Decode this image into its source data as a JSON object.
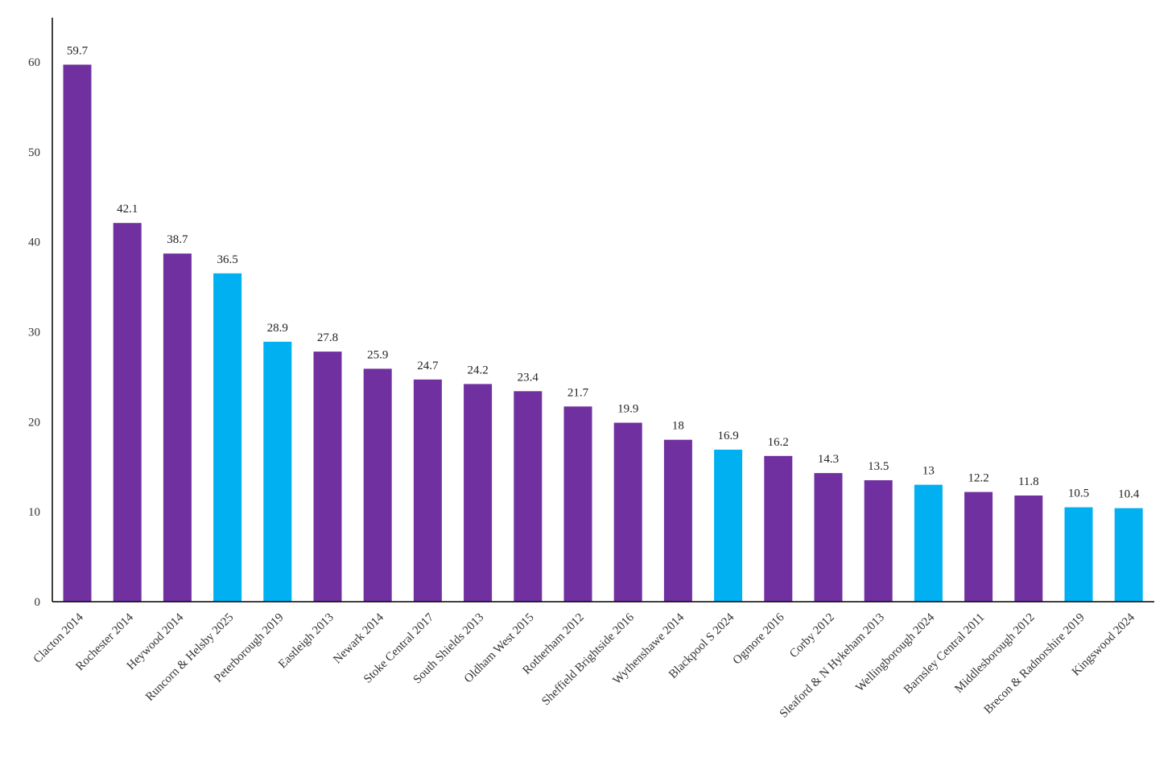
{
  "chart_data": {
    "type": "bar",
    "title": "",
    "xlabel": "",
    "ylabel": "",
    "ylim": [
      0,
      65
    ],
    "yticks": [
      0,
      10,
      20,
      30,
      40,
      50,
      60
    ],
    "grid": false,
    "legend": "none",
    "colors": {
      "purple": "#7030A0",
      "blue": "#00B0F0"
    },
    "categories": [
      "Clacton 2014",
      "Rochester 2014",
      "Heywood 2014",
      "Runcorn & Helsby 2025",
      "Peterborough 2019",
      "Eastleigh 2013",
      "Newark 2014",
      "Stoke Central 2017",
      "South Shields 2013",
      "Oldham West 2015",
      "Rotherham 2012",
      "Sheffield Brightside 2016",
      "Wythenshawe 2014",
      "Blackpool S 2024",
      "Ogmore 2016",
      "Corby 2012",
      "Sleaford & N Hykeham 2013",
      "Wellingborough 2024",
      "Barnsley Central 2011",
      "Middlesborough 2012",
      "Brecon & Radnorshire 2019",
      "Kingswood 2024"
    ],
    "values": [
      59.7,
      42.1,
      38.7,
      36.5,
      28.9,
      27.8,
      25.9,
      24.7,
      24.2,
      23.4,
      21.7,
      19.9,
      18,
      16.9,
      16.2,
      14.3,
      13.5,
      13,
      12.2,
      11.8,
      10.5,
      10.4
    ],
    "value_labels": [
      "59.7",
      "42.1",
      "38.7",
      "36.5",
      "28.9",
      "27.8",
      "25.9",
      "24.7",
      "24.2",
      "23.4",
      "21.7",
      "19.9",
      "18",
      "16.9",
      "16.2",
      "14.3",
      "13.5",
      "13",
      "12.2",
      "11.8",
      "10.5",
      "10.4"
    ],
    "bar_colors": [
      "purple",
      "purple",
      "purple",
      "blue",
      "blue",
      "purple",
      "purple",
      "purple",
      "purple",
      "purple",
      "purple",
      "purple",
      "purple",
      "blue",
      "purple",
      "purple",
      "purple",
      "blue",
      "purple",
      "purple",
      "blue",
      "blue"
    ]
  }
}
